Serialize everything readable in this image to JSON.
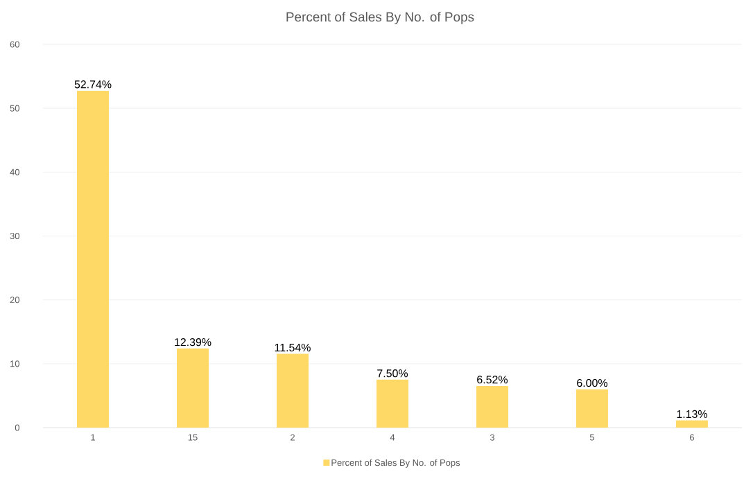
{
  "chart_data": {
    "type": "bar",
    "title": "Percent of Sales By No. of Pops",
    "categories": [
      "1",
      "15",
      "2",
      "4",
      "3",
      "5",
      "6"
    ],
    "series": [
      {
        "name": "Percent of Sales By No. of Pops",
        "color": "#ffd966",
        "values": [
          52.74,
          12.39,
          11.54,
          7.5,
          6.52,
          6.0,
          1.13
        ]
      }
    ],
    "value_labels": [
      "52.74%",
      "12.39%",
      "11.54%",
      "7.50%",
      "6.52%",
      "6.00%",
      "1.13%"
    ],
    "ylim": [
      0,
      60
    ],
    "yticks": [
      0,
      10,
      20,
      30,
      40,
      50,
      60
    ],
    "grid": "y",
    "legend": "bottom"
  }
}
